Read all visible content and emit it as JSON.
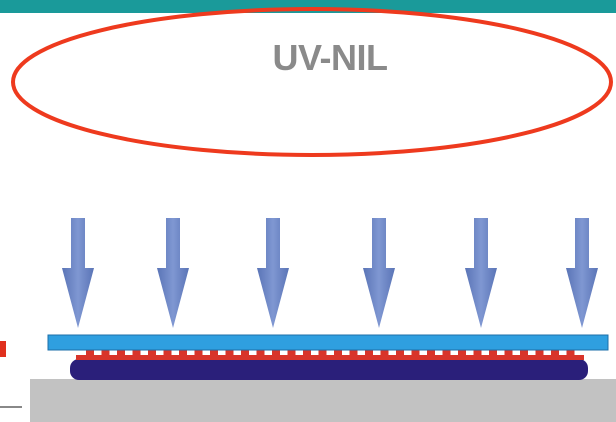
{
  "title": {
    "text": "UV-NIL",
    "ellipse_color": "#ee3a1e",
    "text_color": "#8a8a8a"
  },
  "colors": {
    "top_band": "#1a9a9a",
    "uv_arrow": "#6b84c2",
    "template": "#2f9fe0",
    "resist": "#d8342a",
    "substrate_layer": "#2a1f7a",
    "base": "#c2c2c2"
  },
  "icons": {
    "uv_arrow": "down-arrow-icon"
  }
}
